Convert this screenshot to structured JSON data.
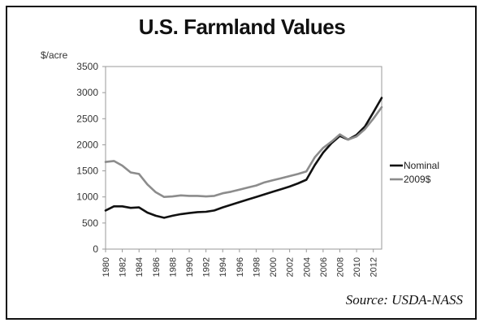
{
  "header": {
    "title": "U.S. Farmland Values",
    "unit": "$/acre",
    "source": "Source: USDA-NASS"
  },
  "chart_data": {
    "type": "line",
    "title": "U.S. Farmland Values",
    "ylabel": "$/acre",
    "xlabel": "",
    "ylim": [
      0,
      3500
    ],
    "xlim": [
      1980,
      2013
    ],
    "y_ticks": [
      0,
      500,
      1000,
      1500,
      2000,
      2500,
      3000,
      3500
    ],
    "x_ticks": [
      "1980",
      "1982",
      "1984",
      "1986",
      "1988",
      "1990",
      "1992",
      "1994",
      "1996",
      "1998",
      "2000",
      "2002",
      "2004",
      "2006",
      "2008",
      "2010",
      "2012"
    ],
    "legend_position": "right",
    "grid": false,
    "x": [
      1980,
      1981,
      1982,
      1983,
      1984,
      1985,
      1986,
      1987,
      1988,
      1989,
      1990,
      1991,
      1992,
      1993,
      1994,
      1995,
      1996,
      1997,
      1998,
      1999,
      2000,
      2001,
      2002,
      2003,
      2004,
      2005,
      2006,
      2007,
      2008,
      2009,
      2010,
      2011,
      2012,
      2013
    ],
    "series": [
      {
        "name": "Nominal",
        "color": "#111111",
        "values": [
          740,
          820,
          820,
          790,
          800,
          700,
          640,
          600,
          640,
          670,
          690,
          710,
          715,
          740,
          800,
          850,
          900,
          950,
          1000,
          1050,
          1100,
          1150,
          1200,
          1260,
          1330,
          1610,
          1850,
          2030,
          2170,
          2100,
          2190,
          2350,
          2620,
          2900
        ]
      },
      {
        "name": "2009$",
        "color": "#8c8c8c",
        "values": [
          1670,
          1690,
          1600,
          1470,
          1440,
          1240,
          1090,
          1000,
          1010,
          1030,
          1020,
          1020,
          1010,
          1020,
          1070,
          1100,
          1140,
          1180,
          1220,
          1280,
          1320,
          1360,
          1400,
          1440,
          1490,
          1760,
          1940,
          2060,
          2200,
          2100,
          2160,
          2300,
          2500,
          2720
        ]
      }
    ]
  }
}
